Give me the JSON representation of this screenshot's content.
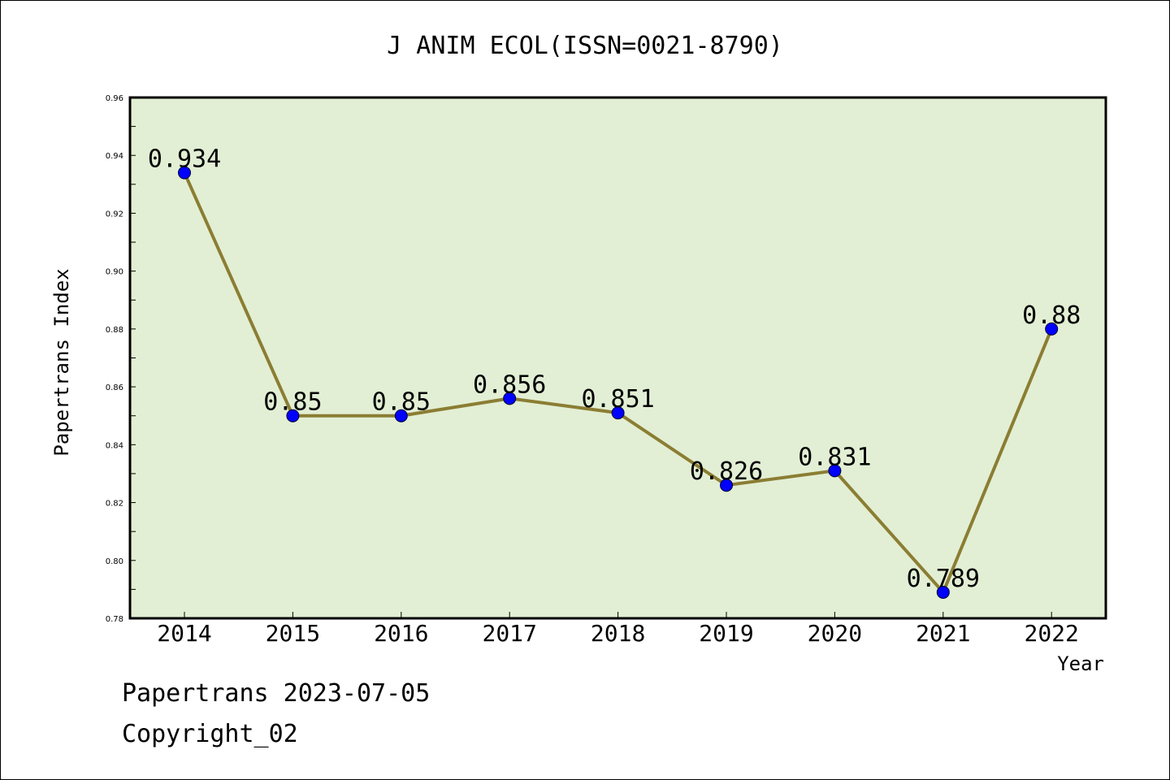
{
  "chart_data": {
    "type": "line",
    "title": "J ANIM ECOL(ISSN=0021-8790)",
    "xlabel": "Year",
    "ylabel": "Papertrans Index",
    "categories": [
      "2014",
      "2015",
      "2016",
      "2017",
      "2018",
      "2019",
      "2020",
      "2021",
      "2022"
    ],
    "values": [
      0.934,
      0.85,
      0.85,
      0.856,
      0.851,
      0.826,
      0.831,
      0.789,
      0.88
    ],
    "data_labels": [
      "0.934",
      "0.85",
      "0.85",
      "0.856",
      "0.851",
      "0.826",
      "0.831",
      "0.789",
      "0.88"
    ],
    "ylim": [
      0.78,
      0.96
    ],
    "yticks": [
      "0.78",
      "0.80",
      "0.82",
      "0.84",
      "0.86",
      "0.88",
      "0.90",
      "0.92",
      "0.94",
      "0.96"
    ],
    "grid": false,
    "colors": {
      "line": "#8b7d33",
      "marker": "#0000ff",
      "plot_background": "#e2efd4"
    }
  },
  "footer": {
    "source_line": "Papertrans 2023-07-05",
    "copyright_line": "Copyright_02"
  }
}
